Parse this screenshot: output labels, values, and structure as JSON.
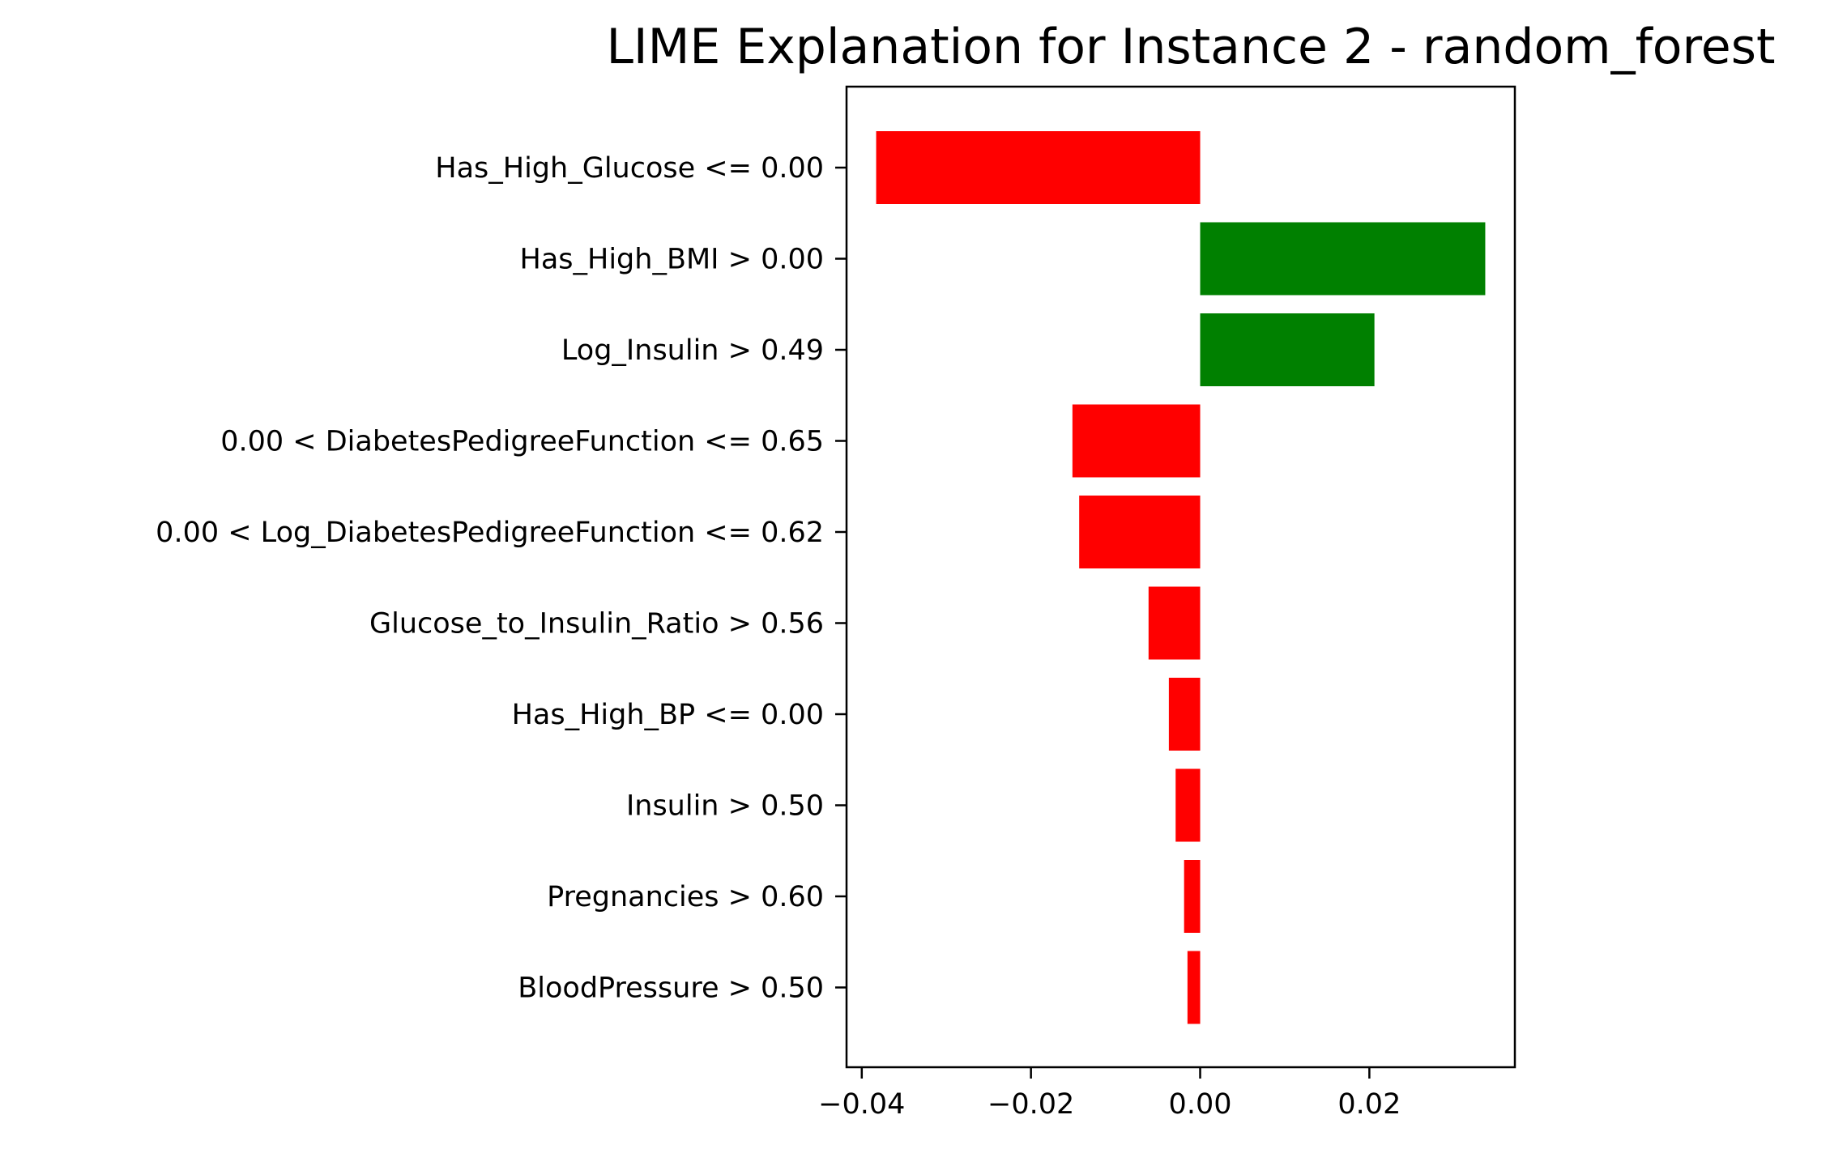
{
  "chart_data": {
    "type": "bar",
    "orientation": "horizontal",
    "title": "LIME Explanation for Instance 2 - random_forest",
    "xlabel": "",
    "ylabel": "",
    "categories": [
      "Has_High_Glucose <= 0.00",
      "Has_High_BMI > 0.00",
      "Log_Insulin > 0.49",
      "0.00 < DiabetesPedigreeFunction <= 0.65",
      "0.00 < Log_DiabetesPedigreeFunction <= 0.62",
      "Glucose_to_Insulin_Ratio > 0.56",
      "Has_High_BP <= 0.00",
      "Insulin > 0.50",
      "Pregnancies > 0.60",
      "BloodPressure > 0.50"
    ],
    "values": [
      -0.0383,
      0.0337,
      0.0206,
      -0.0151,
      -0.0143,
      -0.0061,
      -0.0037,
      -0.0029,
      -0.0019,
      -0.0015
    ],
    "x_ticks": [
      -0.04,
      -0.02,
      0.0,
      0.02
    ],
    "x_tick_labels": [
      "−0.04",
      "−0.02",
      "0.00",
      "0.02"
    ],
    "xlim": [
      -0.0418,
      0.0372
    ],
    "grid": false,
    "colors": {
      "positive": "#008000",
      "negative": "#ff0000"
    }
  }
}
